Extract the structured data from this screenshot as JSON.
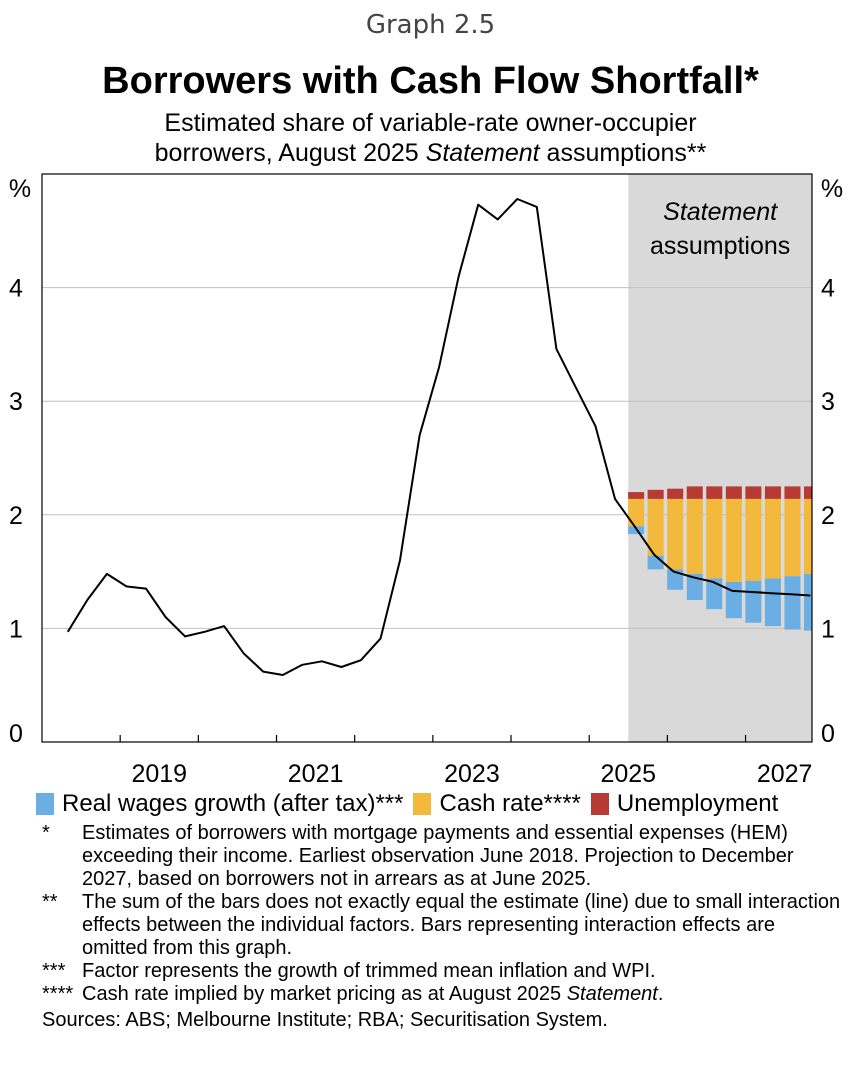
{
  "header": {
    "graph_label": "Graph 2.5",
    "title": "Borrowers with Cash Flow Shortfall*",
    "subtitle_line1": "Estimated share of variable-rate owner-occupier",
    "subtitle_line2_pre": "borrowers, August 2025 ",
    "subtitle_line2_italic": "Statement",
    "subtitle_line2_post": " assumptions**"
  },
  "colors": {
    "real_wages": "#6aaee3",
    "cash_rate": "#f3b93c",
    "unemployment": "#b83a34",
    "shade": "#d9d9d9",
    "line": "#000000",
    "grid": "#c0c0c0"
  },
  "chart_data": {
    "type": "line+stacked-bar",
    "title": "Borrowers with Cash Flow Shortfall*",
    "y_unit_left": "%",
    "y_unit_right": "%",
    "ylim": [
      0,
      5
    ],
    "yticks": [
      0,
      1,
      2,
      3,
      4
    ],
    "xlim": [
      2018.0,
      2027.85
    ],
    "xticks": [
      2019,
      2021,
      2023,
      2025,
      2027
    ],
    "shaded_region": {
      "from": 2025.5,
      "to": 2027.85,
      "label_italic": "Statement",
      "label": "assumptions"
    },
    "line": {
      "name": "Estimated share (%)",
      "x": [
        2018.33,
        2018.58,
        2018.83,
        2019.08,
        2019.33,
        2019.58,
        2019.83,
        2020.08,
        2020.33,
        2020.58,
        2020.83,
        2021.08,
        2021.33,
        2021.58,
        2021.83,
        2022.08,
        2022.33,
        2022.58,
        2022.83,
        2023.08,
        2023.33,
        2023.58,
        2023.83,
        2024.08,
        2024.33,
        2024.58,
        2024.83,
        2025.08,
        2025.33,
        2025.58,
        2025.83,
        2026.08,
        2026.33,
        2026.58,
        2026.83,
        2027.08,
        2027.33,
        2027.58,
        2027.83
      ],
      "values": [
        0.97,
        1.25,
        1.48,
        1.37,
        1.35,
        1.1,
        0.93,
        0.97,
        1.02,
        0.78,
        0.62,
        0.59,
        0.68,
        0.71,
        0.66,
        0.72,
        0.91,
        1.6,
        2.7,
        3.3,
        4.1,
        4.73,
        4.6,
        4.78,
        4.71,
        3.46,
        3.12,
        2.78,
        2.14,
        1.9,
        1.65,
        1.5,
        1.45,
        1.41,
        1.33,
        1.32,
        1.31,
        1.3,
        1.29
      ]
    },
    "bars": {
      "x": [
        2025.6,
        2025.85,
        2026.1,
        2026.35,
        2026.6,
        2026.85,
        2027.1,
        2027.35,
        2027.6,
        2027.85
      ],
      "baseline": 2.14,
      "series": [
        {
          "name": "Real wages growth (after tax)***",
          "low": [
            1.83,
            1.52,
            1.34,
            1.25,
            1.17,
            1.09,
            1.05,
            1.02,
            0.99,
            0.98
          ],
          "high": [
            1.9,
            1.64,
            1.52,
            1.48,
            1.44,
            1.41,
            1.42,
            1.44,
            1.46,
            1.48
          ]
        },
        {
          "name": "Cash rate****",
          "low": [
            1.9,
            1.64,
            1.52,
            1.48,
            1.44,
            1.41,
            1.42,
            1.44,
            1.46,
            1.48
          ],
          "high": [
            2.14,
            2.14,
            2.14,
            2.14,
            2.14,
            2.14,
            2.14,
            2.14,
            2.14,
            2.14
          ]
        },
        {
          "name": "Unemployment",
          "low": [
            2.14,
            2.14,
            2.14,
            2.14,
            2.14,
            2.14,
            2.14,
            2.14,
            2.14,
            2.14
          ],
          "high": [
            2.2,
            2.22,
            2.23,
            2.25,
            2.25,
            2.25,
            2.25,
            2.25,
            2.25,
            2.25
          ]
        }
      ]
    }
  },
  "legend": {
    "real_wages": "Real wages growth (after tax)***",
    "cash_rate": "Cash rate****",
    "unemployment": "Unemployment"
  },
  "footnotes": [
    {
      "marker": "*",
      "text": "Estimates of borrowers with mortgage payments and essential expenses (HEM) exceeding their income. Earliest observation June 2018. Projection to December 2027, based on borrowers not in arrears as at June 2025."
    },
    {
      "marker": "**",
      "text": "The sum of the bars does not exactly equal the estimate (line) due to small interaction effects between the individual factors. Bars representing interaction effects are omitted from this graph."
    },
    {
      "marker": "***",
      "text": "Factor represents the growth of trimmed mean inflation and WPI."
    },
    {
      "marker": "****",
      "text_pre": "Cash rate implied by market pricing as at August 2025 ",
      "text_italic": "Statement",
      "text_post": "."
    }
  ],
  "sources": "Sources: ABS; Melbourne Institute; RBA; Securitisation System."
}
